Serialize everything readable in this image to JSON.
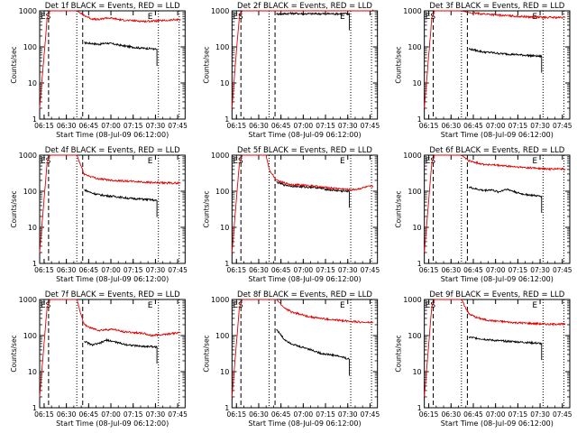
{
  "colors": {
    "events": "#000000",
    "lld": "#e00000",
    "axis": "#000000",
    "background": "#ffffff"
  },
  "common": {
    "xlabel": "Start Time (08-Jul-09 06:12:00)",
    "ylabel": "Counts/sec",
    "x_ticks": [
      "06:15",
      "06:30",
      "06:45",
      "07:00",
      "07:15",
      "07:30",
      "07:45"
    ],
    "x_tick_minutes": [
      3,
      18,
      33,
      48,
      63,
      78,
      93
    ],
    "y_ticks": [
      "1",
      "10",
      "100",
      "1000"
    ],
    "y_scale": "log",
    "ylim": [
      1,
      1000
    ],
    "xlim_minutes_after_start": [
      0,
      98
    ],
    "marker_labels": {
      "start": "ES",
      "end": "E"
    }
  },
  "chart_data": [
    {
      "type": "line",
      "title": "Det 1f BLACK = Events, RED = LLD",
      "marks": {
        "dash1": 6,
        "dot1": 25,
        "dash2": 29,
        "dot2": 80,
        "dot3": 94
      },
      "series": [
        {
          "color": "#000000",
          "x": [
            30,
            35,
            40,
            45,
            50,
            55,
            60,
            65,
            70,
            75,
            79
          ],
          "values": [
            130,
            125,
            118,
            128,
            120,
            110,
            102,
            96,
            92,
            90,
            85
          ]
        },
        {
          "color": "#e00000",
          "x": [
            0,
            3,
            5,
            7,
            9,
            11,
            13,
            15,
            17,
            19,
            21,
            23,
            25,
            30,
            35,
            40,
            45,
            50,
            55,
            60,
            65,
            70,
            75,
            80,
            85,
            90,
            95
          ],
          "values": [
            2,
            60,
            600,
            1000,
            1000,
            1000,
            1000,
            1000,
            1000,
            1000,
            1000,
            1000,
            1000,
            750,
            600,
            570,
            640,
            610,
            560,
            540,
            530,
            510,
            520,
            530,
            540,
            560,
            580
          ]
        }
      ]
    },
    {
      "type": "line",
      "title": "Det 2f BLACK = Events, RED = LLD",
      "marks": {
        "dash1": 6,
        "dot1": 25,
        "dash2": 29,
        "dot2": 80,
        "dot3": 94
      },
      "series": [
        {
          "color": "#000000",
          "x": [
            30,
            35,
            40,
            45,
            50,
            55,
            60,
            65,
            70,
            75,
            79
          ],
          "values": [
            820,
            830,
            850,
            840,
            830,
            830,
            830,
            830,
            830,
            830,
            830
          ]
        },
        {
          "color": "#e00000",
          "x": [
            0,
            3,
            5,
            7,
            9,
            11,
            13,
            15,
            17,
            19,
            21,
            23,
            25,
            30,
            35,
            40,
            45,
            50,
            55,
            60,
            65,
            70,
            75,
            80,
            85,
            90,
            95
          ],
          "values": [
            2,
            80,
            700,
            1000,
            1000,
            1000,
            1000,
            1000,
            1000,
            1000,
            1000,
            1000,
            1000,
            1080,
            1050,
            1100,
            1080,
            1070,
            1050,
            1060,
            1080,
            1090,
            1100,
            1090,
            1080,
            1090,
            1080
          ]
        }
      ]
    },
    {
      "type": "line",
      "title": "Det 3f BLACK = Events, RED = LLD",
      "marks": {
        "dash1": 6,
        "dot1": 25,
        "dash2": 29,
        "dot2": 80,
        "dot3": 94
      },
      "series": [
        {
          "color": "#000000",
          "x": [
            30,
            35,
            40,
            45,
            50,
            55,
            60,
            65,
            70,
            75,
            79
          ],
          "values": [
            88,
            80,
            72,
            70,
            66,
            64,
            62,
            60,
            58,
            56,
            55
          ]
        },
        {
          "color": "#e00000",
          "x": [
            0,
            3,
            5,
            7,
            9,
            11,
            13,
            15,
            17,
            19,
            21,
            23,
            25,
            30,
            35,
            40,
            45,
            50,
            55,
            60,
            65,
            70,
            75,
            80,
            85,
            90,
            95
          ],
          "values": [
            2,
            60,
            600,
            1000,
            1000,
            1000,
            1000,
            1000,
            1000,
            1000,
            1000,
            1000,
            1000,
            900,
            850,
            820,
            800,
            760,
            740,
            720,
            700,
            680,
            670,
            660,
            660,
            650,
            650
          ]
        }
      ]
    },
    {
      "type": "line",
      "title": "Det 4f BLACK = Events, RED = LLD",
      "marks": {
        "dash1": 6,
        "dot1": 25,
        "dash2": 29,
        "dot2": 80,
        "dot3": 94
      },
      "series": [
        {
          "color": "#000000",
          "x": [
            30,
            35,
            40,
            45,
            50,
            55,
            60,
            65,
            70,
            75,
            79
          ],
          "values": [
            110,
            90,
            80,
            75,
            72,
            68,
            64,
            62,
            60,
            58,
            55
          ]
        },
        {
          "color": "#e00000",
          "x": [
            0,
            3,
            5,
            7,
            9,
            11,
            13,
            15,
            17,
            19,
            21,
            23,
            25,
            30,
            35,
            40,
            45,
            50,
            55,
            60,
            65,
            70,
            75,
            80,
            85,
            90,
            95
          ],
          "values": [
            2,
            60,
            600,
            1000,
            1000,
            1000,
            1000,
            1000,
            1000,
            1000,
            1000,
            1000,
            1000,
            300,
            250,
            220,
            210,
            200,
            195,
            190,
            185,
            180,
            175,
            170,
            170,
            168,
            170
          ]
        }
      ]
    },
    {
      "type": "line",
      "title": "Det 5f BLACK = Events, RED = LLD",
      "marks": {
        "dash1": 6,
        "dot1": 25,
        "dash2": 29,
        "dot2": 80,
        "dot3": 94
      },
      "series": [
        {
          "color": "#000000",
          "x": [
            30,
            35,
            40,
            45,
            50,
            55,
            60,
            65,
            70,
            75,
            79
          ],
          "values": [
            180,
            150,
            140,
            135,
            130,
            130,
            120,
            110,
            105,
            100,
            100
          ]
        },
        {
          "color": "#e00000",
          "x": [
            0,
            3,
            5,
            7,
            9,
            11,
            13,
            15,
            17,
            19,
            21,
            23,
            25,
            30,
            35,
            40,
            45,
            50,
            55,
            60,
            65,
            70,
            75,
            80,
            85,
            90,
            95
          ],
          "values": [
            2,
            60,
            600,
            1000,
            1000,
            1000,
            1000,
            1000,
            1000,
            1000,
            1000,
            1000,
            400,
            200,
            170,
            155,
            150,
            145,
            140,
            130,
            125,
            120,
            115,
            110,
            115,
            130,
            140
          ]
        }
      ]
    },
    {
      "type": "line",
      "title": "Det 6f BLACK = Events, RED = LLD",
      "marks": {
        "dash1": 6,
        "dot1": 25,
        "dash2": 29,
        "dot2": 80,
        "dot3": 94
      },
      "series": [
        {
          "color": "#000000",
          "x": [
            30,
            35,
            40,
            45,
            50,
            55,
            60,
            65,
            70,
            75,
            79
          ],
          "values": [
            130,
            115,
            105,
            110,
            95,
            115,
            100,
            85,
            80,
            75,
            72
          ]
        },
        {
          "color": "#e00000",
          "x": [
            0,
            3,
            5,
            7,
            9,
            11,
            13,
            15,
            17,
            19,
            21,
            23,
            25,
            30,
            35,
            40,
            45,
            50,
            55,
            60,
            65,
            70,
            75,
            80,
            85,
            90,
            95
          ],
          "values": [
            2,
            60,
            600,
            1000,
            1000,
            1000,
            1000,
            1000,
            1000,
            1000,
            1000,
            1000,
            1000,
            700,
            620,
            560,
            540,
            520,
            500,
            480,
            460,
            450,
            440,
            420,
            410,
            420,
            410
          ]
        }
      ]
    },
    {
      "type": "line",
      "title": "Det 7f BLACK = Events, RED = LLD",
      "marks": {
        "dash1": 6,
        "dot1": 25,
        "dash2": 29,
        "dot2": 80,
        "dot3": 94
      },
      "series": [
        {
          "color": "#000000",
          "x": [
            30,
            35,
            40,
            45,
            50,
            55,
            60,
            65,
            70,
            75,
            79
          ],
          "values": [
            70,
            55,
            60,
            75,
            68,
            60,
            55,
            52,
            50,
            50,
            48
          ]
        },
        {
          "color": "#e00000",
          "x": [
            0,
            3,
            5,
            7,
            9,
            11,
            13,
            15,
            17,
            19,
            21,
            23,
            25,
            30,
            35,
            40,
            45,
            50,
            55,
            60,
            65,
            70,
            75,
            80,
            85,
            90,
            95
          ],
          "values": [
            2,
            60,
            600,
            1000,
            1000,
            1000,
            1000,
            1000,
            1000,
            1000,
            1000,
            1000,
            1000,
            200,
            160,
            140,
            145,
            150,
            130,
            125,
            120,
            115,
            100,
            105,
            110,
            115,
            120
          ]
        }
      ]
    },
    {
      "type": "line",
      "title": "Det 8f BLACK = Events, RED = LLD",
      "marks": {
        "dash1": 6,
        "dot1": 25,
        "dash2": 29,
        "dot2": 80,
        "dot3": 94
      },
      "series": [
        {
          "color": "#000000",
          "x": [
            30,
            35,
            40,
            45,
            50,
            55,
            60,
            65,
            70,
            75,
            79
          ],
          "values": [
            150,
            80,
            60,
            50,
            45,
            38,
            32,
            30,
            28,
            25,
            22
          ]
        },
        {
          "color": "#e00000",
          "x": [
            0,
            3,
            5,
            7,
            9,
            11,
            13,
            15,
            17,
            19,
            21,
            23,
            25,
            30,
            35,
            40,
            45,
            50,
            55,
            60,
            65,
            70,
            75,
            80,
            85,
            90,
            95
          ],
          "values": [
            2,
            60,
            600,
            1000,
            1000,
            1000,
            1000,
            1000,
            1000,
            1000,
            1000,
            1000,
            1000,
            1000,
            600,
            450,
            400,
            350,
            320,
            300,
            280,
            270,
            260,
            250,
            240,
            230,
            230
          ]
        }
      ]
    },
    {
      "type": "line",
      "title": "Det 9f BLACK = Events, RED = LLD",
      "marks": {
        "dash1": 6,
        "dot1": 25,
        "dash2": 29,
        "dot2": 80,
        "dot3": 94
      },
      "series": [
        {
          "color": "#000000",
          "x": [
            30,
            35,
            40,
            45,
            50,
            55,
            60,
            65,
            70,
            75,
            79
          ],
          "values": [
            90,
            85,
            80,
            75,
            72,
            70,
            68,
            66,
            64,
            62,
            60
          ]
        },
        {
          "color": "#e00000",
          "x": [
            0,
            3,
            5,
            7,
            9,
            11,
            13,
            15,
            17,
            19,
            21,
            23,
            25,
            30,
            35,
            40,
            45,
            50,
            55,
            60,
            65,
            70,
            75,
            80,
            85,
            90,
            95
          ],
          "values": [
            2,
            60,
            600,
            1000,
            1000,
            1000,
            1000,
            1000,
            1000,
            1000,
            1000,
            1000,
            1000,
            400,
            320,
            280,
            260,
            250,
            240,
            230,
            225,
            220,
            215,
            210,
            205,
            210,
            205
          ]
        }
      ]
    }
  ]
}
